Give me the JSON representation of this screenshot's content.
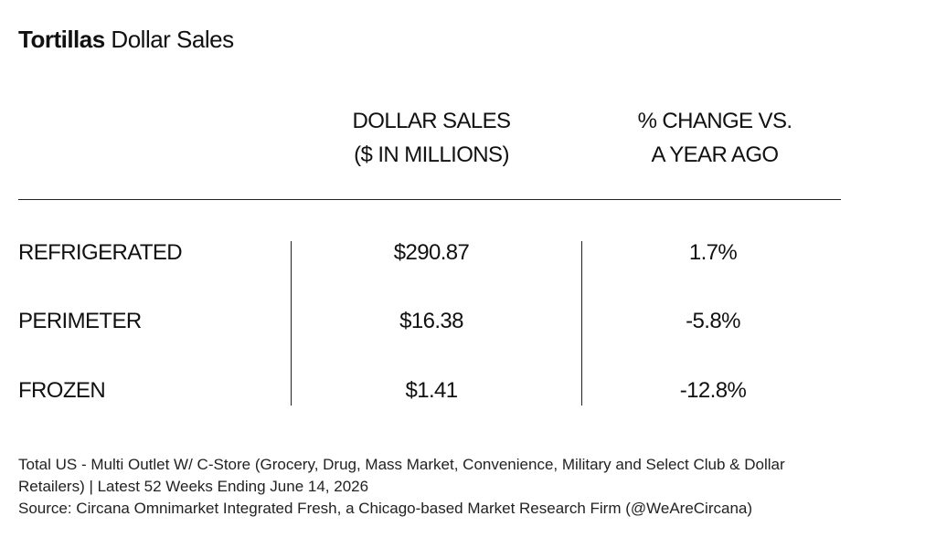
{
  "chart_data": {
    "type": "table",
    "title_bold": "Tortillas",
    "title_rest": " Dollar Sales",
    "columns": [
      {
        "line1": "DOLLAR SALES",
        "line2": "($ IN MILLIONS)"
      },
      {
        "line1": "% CHANGE VS.",
        "line2": "A YEAR AGO"
      }
    ],
    "rows": [
      {
        "label": "REFRIGERATED",
        "sales": "$290.87",
        "change": "1.7%"
      },
      {
        "label": "PERIMETER",
        "sales": "$16.38",
        "change": "-5.8%"
      },
      {
        "label": "FROZEN",
        "sales": "$1.41",
        "change": "-12.8%"
      }
    ]
  },
  "footnote": {
    "line1": "Total US - Multi Outlet W/ C-Store (Grocery, Drug, Mass Market, Convenience, Military and Select Club & Dollar",
    "line2": "Retailers) | Latest 52 Weeks Ending June 14, 2026",
    "line3": "Source: Circana Omnimarket Integrated Fresh, a Chicago-based Market Research Firm (@WeAreCircana)"
  }
}
